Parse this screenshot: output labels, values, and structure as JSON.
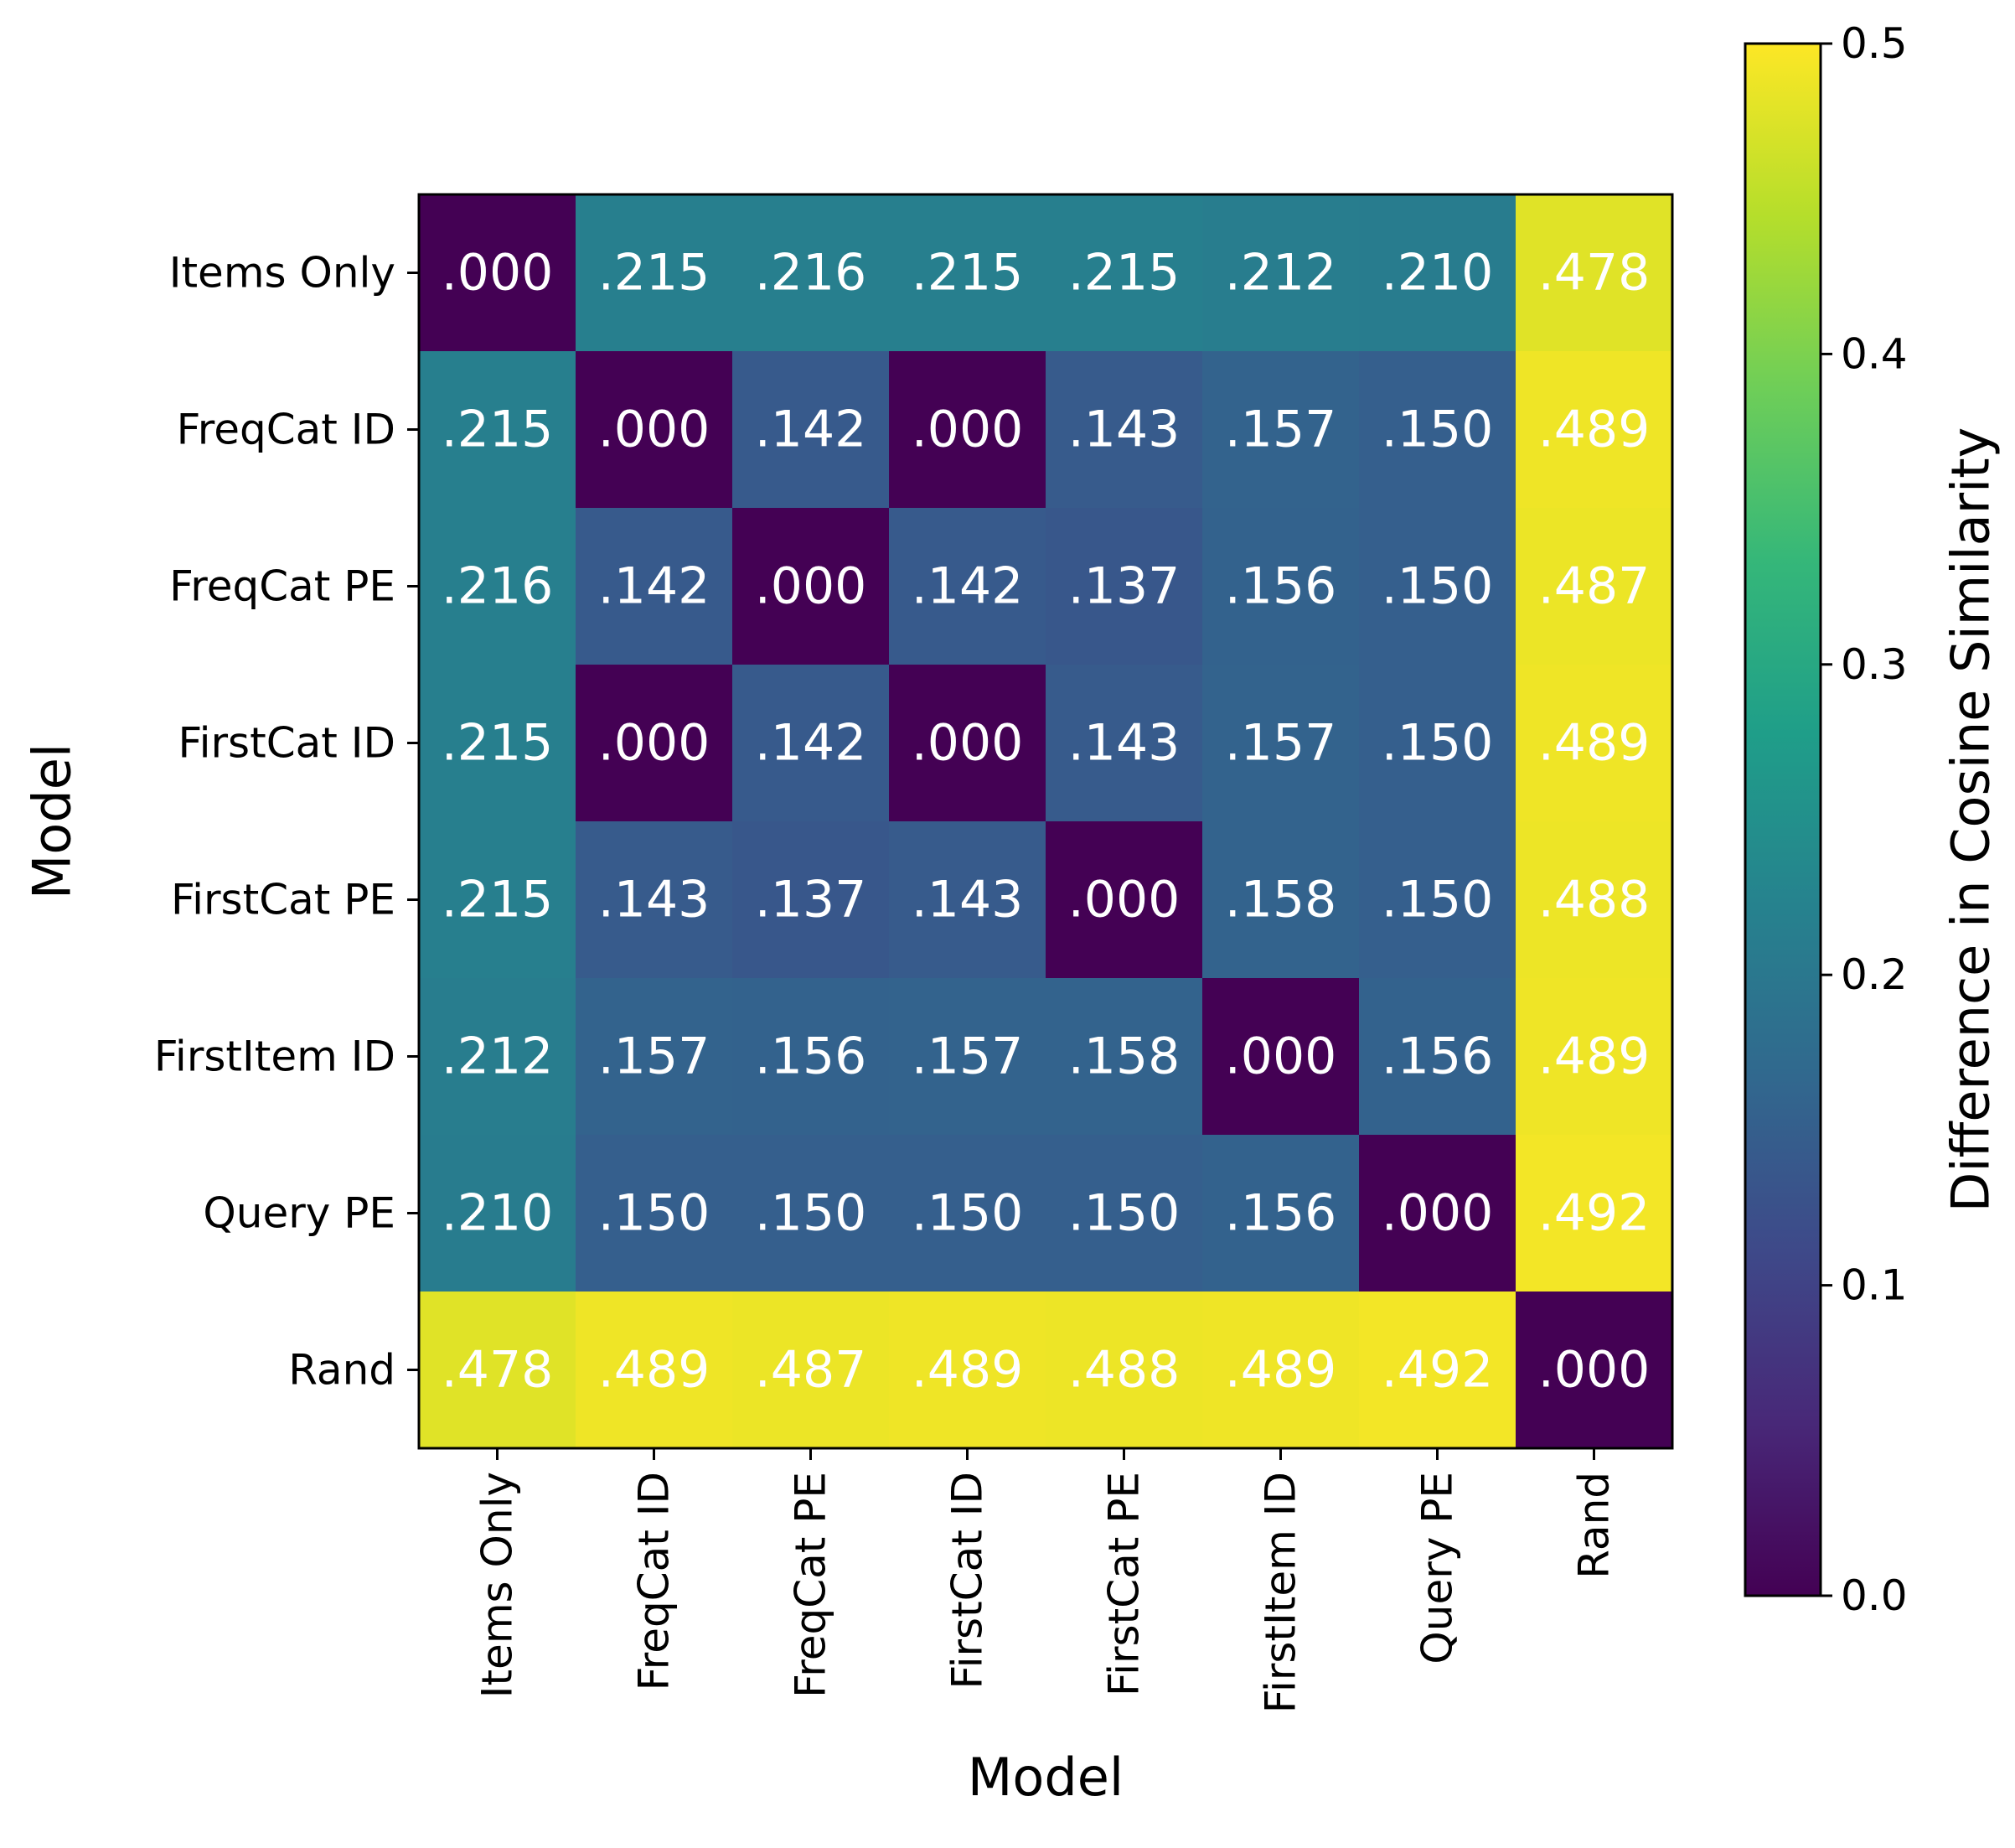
{
  "chart_data": {
    "type": "heatmap",
    "title": "",
    "xlabel": "Model",
    "ylabel": "Model",
    "rows": [
      "Items Only",
      "FreqCat ID",
      "FreqCat PE",
      "FirstCat ID",
      "FirstCat PE",
      "FirstItem ID",
      "Query PE",
      "Rand"
    ],
    "columns": [
      "Items Only",
      "FreqCat ID",
      "FreqCat PE",
      "FirstCat ID",
      "FirstCat PE",
      "FirstItem ID",
      "Query PE",
      "Rand"
    ],
    "values": [
      [
        0.0,
        0.215,
        0.216,
        0.215,
        0.215,
        0.212,
        0.21,
        0.478
      ],
      [
        0.215,
        0.0,
        0.142,
        0.0,
        0.143,
        0.157,
        0.15,
        0.489
      ],
      [
        0.216,
        0.142,
        0.0,
        0.142,
        0.137,
        0.156,
        0.15,
        0.487
      ],
      [
        0.215,
        0.0,
        0.142,
        0.0,
        0.143,
        0.157,
        0.15,
        0.489
      ],
      [
        0.215,
        0.143,
        0.137,
        0.143,
        0.0,
        0.158,
        0.15,
        0.488
      ],
      [
        0.212,
        0.157,
        0.156,
        0.157,
        0.158,
        0.0,
        0.156,
        0.489
      ],
      [
        0.21,
        0.15,
        0.15,
        0.15,
        0.15,
        0.156,
        0.0,
        0.492
      ],
      [
        0.478,
        0.489,
        0.487,
        0.489,
        0.488,
        0.489,
        0.492,
        0.0
      ]
    ],
    "cell_labels": [
      [
        ".000",
        ".215",
        ".216",
        ".215",
        ".215",
        ".212",
        ".210",
        ".478"
      ],
      [
        ".215",
        ".000",
        ".142",
        ".000",
        ".143",
        ".157",
        ".150",
        ".489"
      ],
      [
        ".216",
        ".142",
        ".000",
        ".142",
        ".137",
        ".156",
        ".150",
        ".487"
      ],
      [
        ".215",
        ".000",
        ".142",
        ".000",
        ".143",
        ".157",
        ".150",
        ".489"
      ],
      [
        ".215",
        ".143",
        ".137",
        ".143",
        ".000",
        ".158",
        ".150",
        ".488"
      ],
      [
        ".212",
        ".157",
        ".156",
        ".157",
        ".158",
        ".000",
        ".156",
        ".489"
      ],
      [
        ".210",
        ".150",
        ".150",
        ".150",
        ".150",
        ".156",
        ".000",
        ".492"
      ],
      [
        ".478",
        ".489",
        ".487",
        ".489",
        ".488",
        ".489",
        ".492",
        ".000"
      ]
    ],
    "colorbar": {
      "label": "Difference in Cosine Similarity",
      "range": [
        0,
        0.5
      ],
      "ticks": [
        0.0,
        0.1,
        0.2,
        0.3,
        0.4,
        0.5
      ],
      "tick_labels": [
        "0.0",
        "0.1",
        "0.2",
        "0.3",
        "0.4",
        "0.5"
      ],
      "colormap": "viridis"
    },
    "colors": {
      "viridis_stops": [
        "#440154",
        "#482878",
        "#3e4989",
        "#31688e",
        "#26828e",
        "#1f9e89",
        "#35b779",
        "#6ece58",
        "#b5de2b",
        "#fde725"
      ],
      "cell_text": "#ffffff"
    }
  }
}
